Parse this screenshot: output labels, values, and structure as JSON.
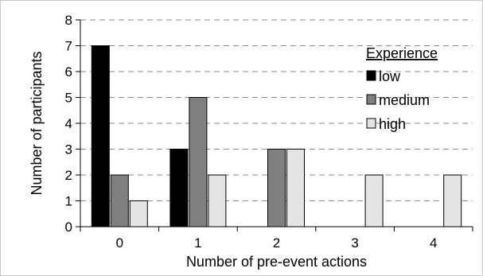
{
  "chart_data": {
    "type": "bar",
    "categories": [
      "0",
      "1",
      "2",
      "3",
      "4"
    ],
    "series": [
      {
        "name": "low",
        "values": [
          7,
          3,
          0,
          0,
          0
        ],
        "color": "#000000"
      },
      {
        "name": "medium",
        "values": [
          2,
          5,
          3,
          0,
          0
        ],
        "color": "#808080"
      },
      {
        "name": "high",
        "values": [
          1,
          2,
          3,
          2,
          2
        ],
        "color": "#e4e4e4"
      }
    ],
    "title": "",
    "xlabel": "Number of pre-event actions",
    "ylabel": "Number of participants",
    "ylim": [
      0,
      8
    ],
    "yticks": [
      "0",
      "1",
      "2",
      "3",
      "4",
      "5",
      "6",
      "7",
      "8"
    ],
    "grid": "horizontal dashed",
    "legend_title": "Experience",
    "legend_position": "top-right"
  }
}
